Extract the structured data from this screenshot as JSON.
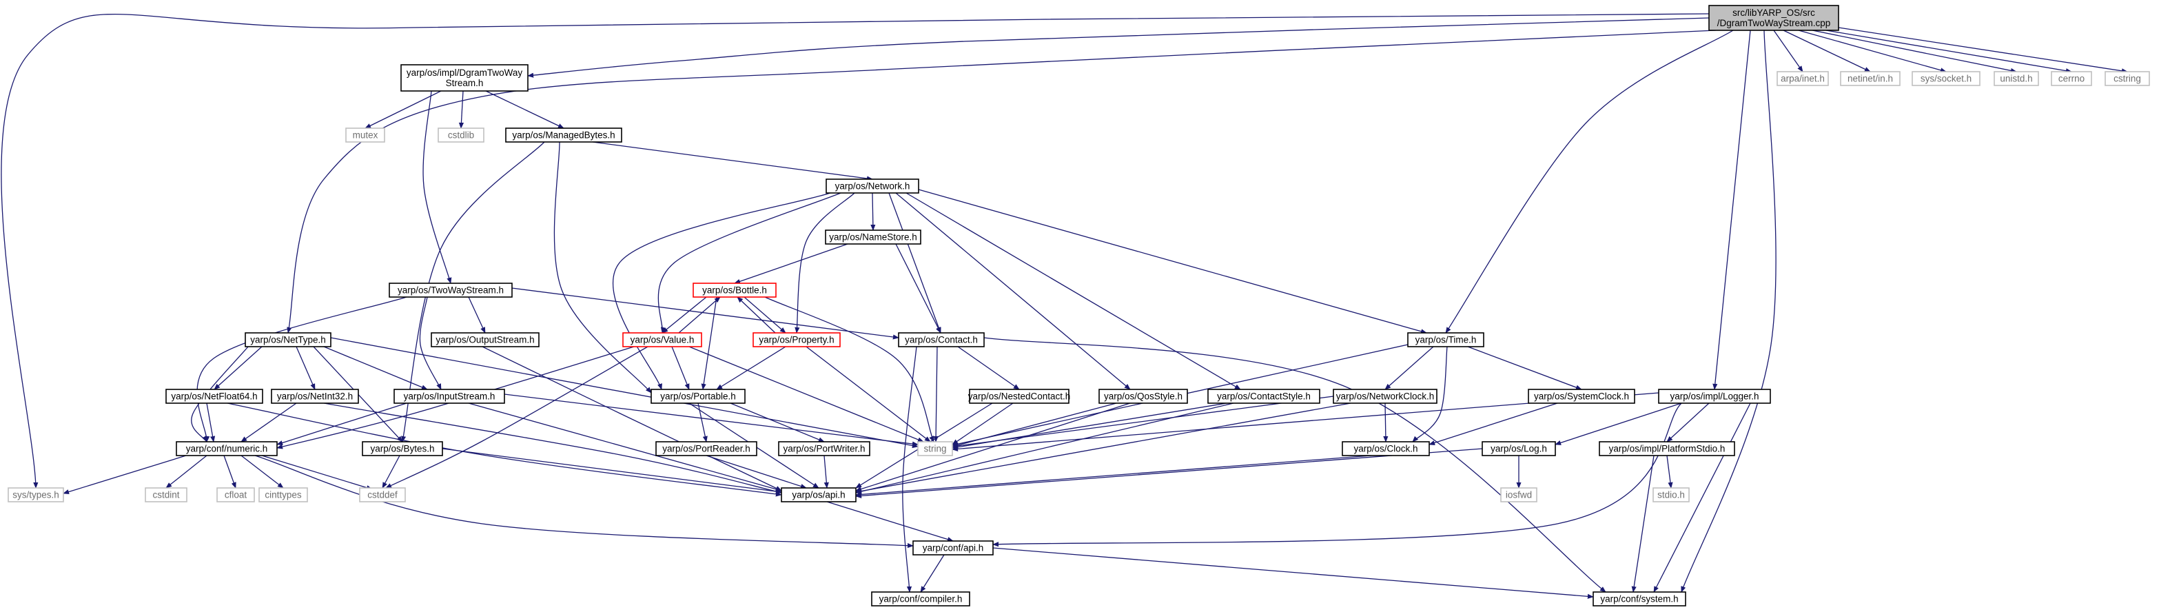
{
  "diagram": {
    "type": "include-dependency-graph",
    "colors": {
      "edge": "#191970",
      "root_fill": "#bfbfbf",
      "node_border": "#000000",
      "external_border": "#bfbfbf",
      "external_text": "#6f6f6f",
      "truncated_border": "#ff0000"
    },
    "nodes": {
      "root": {
        "text": [
          "src/libYARP_OS/src",
          "/DgramTwoWayStream.cpp"
        ],
        "kind": "root"
      },
      "dgramh": {
        "text": [
          "yarp/os/impl/DgramTwoWay",
          "Stream.h"
        ],
        "kind": "normal"
      },
      "mutex": {
        "text": [
          "mutex"
        ],
        "kind": "external"
      },
      "cstdlib": {
        "text": [
          "cstdlib"
        ],
        "kind": "external"
      },
      "managed": {
        "text": [
          "yarp/os/ManagedBytes.h"
        ],
        "kind": "normal"
      },
      "network": {
        "text": [
          "yarp/os/Network.h"
        ],
        "kind": "normal"
      },
      "namestore": {
        "text": [
          "yarp/os/NameStore.h"
        ],
        "kind": "normal"
      },
      "bottle": {
        "text": [
          "yarp/os/Bottle.h"
        ],
        "kind": "truncated"
      },
      "value": {
        "text": [
          "yarp/os/Value.h"
        ],
        "kind": "truncated"
      },
      "property": {
        "text": [
          "yarp/os/Property.h"
        ],
        "kind": "truncated"
      },
      "contact": {
        "text": [
          "yarp/os/Contact.h"
        ],
        "kind": "normal"
      },
      "twoway": {
        "text": [
          "yarp/os/TwoWayStream.h"
        ],
        "kind": "normal"
      },
      "outstream": {
        "text": [
          "yarp/os/OutputStream.h"
        ],
        "kind": "normal"
      },
      "nettype": {
        "text": [
          "yarp/os/NetType.h"
        ],
        "kind": "normal"
      },
      "nf64": {
        "text": [
          "yarp/os/NetFloat64.h"
        ],
        "kind": "normal"
      },
      "ni32": {
        "text": [
          "yarp/os/NetInt32.h"
        ],
        "kind": "normal"
      },
      "instream": {
        "text": [
          "yarp/os/InputStream.h"
        ],
        "kind": "normal"
      },
      "numeric": {
        "text": [
          "yarp/conf/numeric.h"
        ],
        "kind": "normal"
      },
      "bytes": {
        "text": [
          "yarp/os/Bytes.h"
        ],
        "kind": "normal"
      },
      "systypes": {
        "text": [
          "sys/types.h"
        ],
        "kind": "external"
      },
      "cstdint": {
        "text": [
          "cstdint"
        ],
        "kind": "external"
      },
      "cfloat": {
        "text": [
          "cfloat"
        ],
        "kind": "external"
      },
      "cinttypes": {
        "text": [
          "cinttypes"
        ],
        "kind": "external"
      },
      "cstddef": {
        "text": [
          "cstddef"
        ],
        "kind": "external"
      },
      "portable": {
        "text": [
          "yarp/os/Portable.h"
        ],
        "kind": "normal"
      },
      "portreader": {
        "text": [
          "yarp/os/PortReader.h"
        ],
        "kind": "normal"
      },
      "portwriter": {
        "text": [
          "yarp/os/PortWriter.h"
        ],
        "kind": "normal"
      },
      "string": {
        "text": [
          "string"
        ],
        "kind": "external"
      },
      "nested": {
        "text": [
          "yarp/os/NestedContact.h"
        ],
        "kind": "normal"
      },
      "qos": {
        "text": [
          "yarp/os/QosStyle.h"
        ],
        "kind": "normal"
      },
      "contactstyle": {
        "text": [
          "yarp/os/ContactStyle.h"
        ],
        "kind": "normal"
      },
      "time": {
        "text": [
          "yarp/os/Time.h"
        ],
        "kind": "normal"
      },
      "netclock": {
        "text": [
          "yarp/os/NetworkClock.h"
        ],
        "kind": "normal"
      },
      "sysclock": {
        "text": [
          "yarp/os/SystemClock.h"
        ],
        "kind": "normal"
      },
      "clock": {
        "text": [
          "yarp/os/Clock.h"
        ],
        "kind": "normal"
      },
      "logger": {
        "text": [
          "yarp/os/impl/Logger.h"
        ],
        "kind": "normal"
      },
      "log": {
        "text": [
          "yarp/os/Log.h"
        ],
        "kind": "normal"
      },
      "iosfwd": {
        "text": [
          "iosfwd"
        ],
        "kind": "external"
      },
      "platstdio": {
        "text": [
          "yarp/os/impl/PlatformStdio.h"
        ],
        "kind": "normal"
      },
      "stdio": {
        "text": [
          "stdio.h"
        ],
        "kind": "external"
      },
      "osapi": {
        "text": [
          "yarp/os/api.h"
        ],
        "kind": "normal"
      },
      "confapi": {
        "text": [
          "yarp/conf/api.h"
        ],
        "kind": "normal"
      },
      "compiler": {
        "text": [
          "yarp/conf/compiler.h"
        ],
        "kind": "normal"
      },
      "system": {
        "text": [
          "yarp/conf/system.h"
        ],
        "kind": "normal"
      },
      "arpa": {
        "text": [
          "arpa/inet.h"
        ],
        "kind": "external"
      },
      "netinet": {
        "text": [
          "netinet/in.h"
        ],
        "kind": "external"
      },
      "socket": {
        "text": [
          "sys/socket.h"
        ],
        "kind": "external"
      },
      "unistd": {
        "text": [
          "unistd.h"
        ],
        "kind": "external"
      },
      "cerrno": {
        "text": [
          "cerrno"
        ],
        "kind": "external"
      },
      "cstring": {
        "text": [
          "cstring"
        ],
        "kind": "external"
      }
    }
  }
}
